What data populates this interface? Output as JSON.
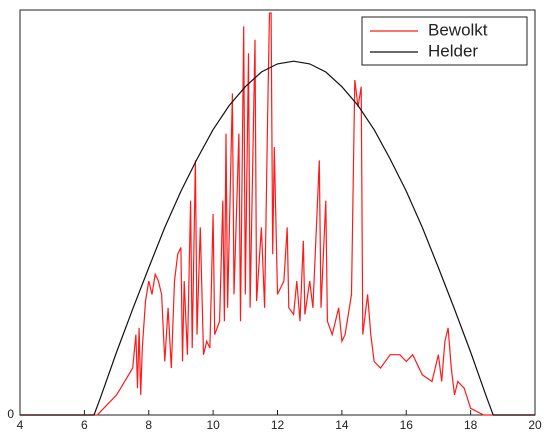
{
  "chart_data": {
    "type": "line",
    "legend": "top-right",
    "xlim": [
      4,
      20
    ],
    "xticks": [
      4,
      6,
      8,
      10,
      12,
      14,
      16,
      18,
      20
    ],
    "ylim": [
      0,
      3
    ],
    "yticks": [
      0
    ],
    "series": [
      {
        "name": "Bewolkt",
        "color": "#ff1a1a",
        "x": [
          4,
          6.4,
          6.6,
          7,
          7.5,
          7.6,
          7.65,
          7.7,
          7.75,
          7.8,
          7.9,
          8,
          8.1,
          8.2,
          8.3,
          8.4,
          8.5,
          8.6,
          8.7,
          8.8,
          8.9,
          9,
          9.05,
          9.1,
          9.2,
          9.3,
          9.35,
          9.45,
          9.5,
          9.6,
          9.7,
          9.8,
          9.9,
          10,
          10.05,
          10.2,
          10.3,
          10.35,
          10.4,
          10.45,
          10.6,
          10.65,
          10.8,
          10.85,
          10.95,
          11,
          11.1,
          11.15,
          11.3,
          11.35,
          11.5,
          11.6,
          11.7,
          11.75,
          11.8,
          11.85,
          11.9,
          12,
          12.2,
          12.3,
          12.35,
          12.5,
          12.6,
          12.7,
          12.8,
          12.85,
          13,
          13.1,
          13.3,
          13.35,
          13.5,
          13.55,
          13.7,
          13.9,
          14,
          14.1,
          14.3,
          14.4,
          14.5,
          14.6,
          14.65,
          14.8,
          14.9,
          15,
          15.2,
          15.5,
          15.8,
          16,
          16.2,
          16.5,
          16.8,
          17,
          17.1,
          17.2,
          17.3,
          17.4,
          17.5,
          17.6,
          17.8,
          18,
          18.4,
          20
        ],
        "values": [
          0,
          0,
          0.05,
          0.15,
          0.35,
          0.6,
          0.2,
          0.65,
          0.15,
          0.5,
          0.85,
          1.0,
          0.9,
          1.05,
          1.0,
          0.9,
          0.4,
          0.8,
          0.35,
          1.0,
          1.2,
          1.25,
          0.4,
          1.0,
          0.45,
          1.6,
          0.5,
          1.9,
          0.6,
          1.4,
          0.45,
          0.55,
          0.5,
          1.5,
          0.6,
          0.7,
          1.6,
          0.7,
          2.1,
          0.8,
          2.4,
          0.9,
          2.1,
          0.7,
          2.9,
          0.9,
          2.7,
          0.8,
          2.8,
          0.85,
          1.4,
          0.8,
          2.3,
          3.0,
          3.0,
          1.2,
          2.0,
          0.9,
          1.0,
          1.4,
          0.8,
          0.75,
          1.0,
          0.7,
          1.3,
          0.75,
          1.0,
          0.8,
          1.9,
          0.8,
          1.6,
          0.7,
          0.6,
          0.8,
          0.55,
          0.6,
          0.9,
          2.5,
          2.3,
          2.45,
          0.6,
          0.9,
          0.6,
          0.4,
          0.35,
          0.45,
          0.45,
          0.4,
          0.45,
          0.3,
          0.25,
          0.45,
          0.25,
          0.55,
          0.65,
          0.35,
          0.15,
          0.25,
          0.2,
          0.05,
          0,
          0
        ]
      },
      {
        "name": "Helder",
        "color": "#111111",
        "x": [
          4,
          6.3,
          6.5,
          7,
          7.5,
          8,
          8.5,
          9,
          9.5,
          10,
          10.5,
          11,
          11.5,
          12,
          12.5,
          13,
          13.5,
          14,
          14.5,
          15,
          15.5,
          16,
          16.5,
          17,
          17.5,
          18,
          18.5,
          18.7,
          20
        ],
        "values": [
          0,
          0,
          0.13,
          0.47,
          0.79,
          1.1,
          1.4,
          1.67,
          1.91,
          2.13,
          2.31,
          2.45,
          2.56,
          2.62,
          2.64,
          2.62,
          2.56,
          2.45,
          2.31,
          2.13,
          1.91,
          1.67,
          1.4,
          1.1,
          0.79,
          0.47,
          0.13,
          0,
          0
        ]
      }
    ]
  }
}
